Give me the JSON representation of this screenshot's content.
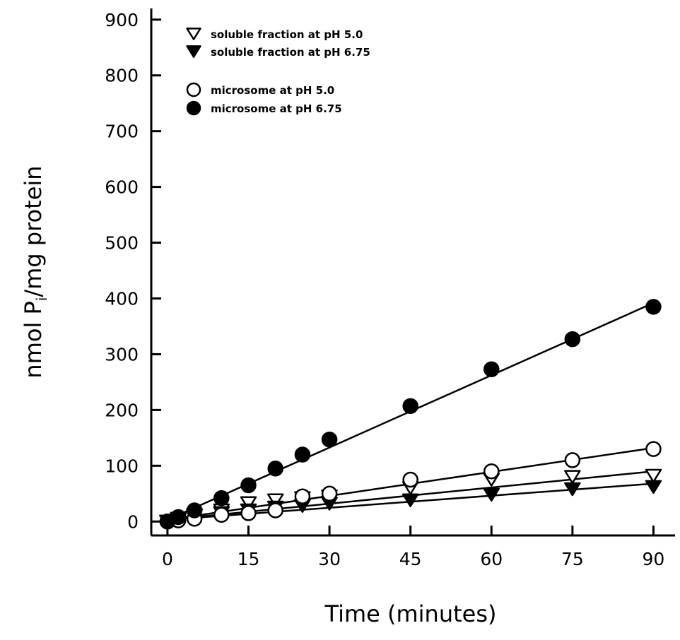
{
  "chart_data": {
    "type": "scatter",
    "xlabel": "Time (minutes)",
    "ylabel_prefix": "nmol P",
    "ylabel_sub": "i",
    "ylabel_suffix": "/mg protein",
    "xlim": [
      -3,
      94
    ],
    "ylim": [
      -25,
      920
    ],
    "xticks": [
      0,
      15,
      30,
      45,
      60,
      75,
      90
    ],
    "yticks": [
      0,
      100,
      200,
      300,
      400,
      500,
      600,
      700,
      800,
      900
    ],
    "grid": false,
    "legend_placement": "top-left",
    "series": [
      {
        "name": "soluble fraction at pH 5.0",
        "marker": "triangle-down-open",
        "x": [
          0,
          2,
          5,
          10,
          15,
          20,
          25,
          30,
          45,
          60,
          75,
          90
        ],
        "y": [
          0,
          5,
          12,
          20,
          33,
          38,
          42,
          45,
          60,
          75,
          80,
          82
        ],
        "fit": [
          [
            0,
            3
          ],
          [
            90,
            90
          ]
        ]
      },
      {
        "name": "soluble fraction at pH 6.75",
        "marker": "triangle-down-filled",
        "x": [
          0,
          2,
          5,
          10,
          15,
          20,
          25,
          30,
          45,
          60,
          75,
          90
        ],
        "y": [
          0,
          3,
          10,
          15,
          20,
          25,
          28,
          32,
          38,
          48,
          58,
          62
        ],
        "fit": [
          [
            0,
            3
          ],
          [
            90,
            68
          ]
        ]
      },
      {
        "name": "microsome at pH 5.0",
        "marker": "circle-open",
        "x": [
          0,
          2,
          5,
          10,
          15,
          20,
          25,
          30,
          45,
          60,
          75,
          90
        ],
        "y": [
          0,
          2,
          5,
          12,
          15,
          20,
          45,
          50,
          75,
          90,
          110,
          130
        ],
        "fit": [
          [
            0,
            3
          ],
          [
            90,
            132
          ]
        ]
      },
      {
        "name": "microsome at pH 6.75",
        "marker": "circle-filled",
        "x": [
          0,
          2,
          5,
          10,
          15,
          20,
          25,
          30,
          45,
          60,
          75,
          90
        ],
        "y": [
          0,
          8,
          20,
          42,
          65,
          95,
          120,
          147,
          207,
          273,
          327,
          385
        ],
        "fit": [
          [
            0,
            3
          ],
          [
            90,
            392
          ]
        ]
      }
    ]
  }
}
